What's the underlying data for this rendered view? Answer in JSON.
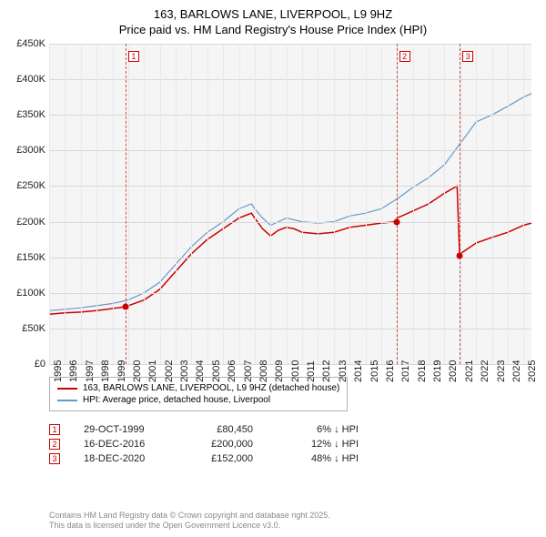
{
  "title": {
    "line1": "163, BARLOWS LANE, LIVERPOOL, L9 9HZ",
    "line2": "Price paid vs. HM Land Registry's House Price Index (HPI)"
  },
  "chart": {
    "type": "line",
    "background_color": "#f5f5f5",
    "grid_color": "#d8d8d8",
    "xlim": [
      1995,
      2025.5
    ],
    "ylim": [
      0,
      450000
    ],
    "ytick_step": 50000,
    "yticks": [
      "£0",
      "£50K",
      "£100K",
      "£150K",
      "£200K",
      "£250K",
      "£300K",
      "£350K",
      "£400K",
      "£450K"
    ],
    "xticks": [
      "1995",
      "1996",
      "1997",
      "1998",
      "1999",
      "2000",
      "2001",
      "2002",
      "2003",
      "2004",
      "2005",
      "2006",
      "2007",
      "2008",
      "2009",
      "2010",
      "2011",
      "2012",
      "2013",
      "2014",
      "2015",
      "2016",
      "2017",
      "2018",
      "2019",
      "2020",
      "2021",
      "2022",
      "2023",
      "2024",
      "2025"
    ],
    "series": [
      {
        "name": "163, BARLOWS LANE, LIVERPOOL, L9 9HZ (detached house)",
        "color": "#cc0000",
        "width": 1.5,
        "points": [
          [
            1995,
            70000
          ],
          [
            1996,
            72000
          ],
          [
            1997,
            73000
          ],
          [
            1998,
            75000
          ],
          [
            1999,
            78000
          ],
          [
            1999.83,
            80450
          ],
          [
            2000,
            82000
          ],
          [
            2001,
            90000
          ],
          [
            2002,
            105000
          ],
          [
            2003,
            130000
          ],
          [
            2004,
            155000
          ],
          [
            2005,
            175000
          ],
          [
            2006,
            190000
          ],
          [
            2007,
            205000
          ],
          [
            2007.8,
            212000
          ],
          [
            2008,
            205000
          ],
          [
            2008.5,
            190000
          ],
          [
            2009,
            180000
          ],
          [
            2009.5,
            188000
          ],
          [
            2010,
            192000
          ],
          [
            2010.5,
            190000
          ],
          [
            2011,
            185000
          ],
          [
            2012,
            183000
          ],
          [
            2013,
            185000
          ],
          [
            2014,
            192000
          ],
          [
            2015,
            195000
          ],
          [
            2016,
            198000
          ],
          [
            2016.96,
            200000
          ],
          [
            2017,
            205000
          ],
          [
            2018,
            215000
          ],
          [
            2019,
            225000
          ],
          [
            2020,
            240000
          ],
          [
            2020.8,
            250000
          ],
          [
            2020.96,
            152000
          ],
          [
            2021,
            155000
          ],
          [
            2022,
            170000
          ],
          [
            2023,
            178000
          ],
          [
            2024,
            185000
          ],
          [
            2025,
            195000
          ],
          [
            2025.5,
            198000
          ]
        ]
      },
      {
        "name": "HPI: Average price, detached house, Liverpool",
        "color": "#6699cc",
        "width": 1.2,
        "points": [
          [
            1995,
            75000
          ],
          [
            1996,
            77000
          ],
          [
            1997,
            79000
          ],
          [
            1998,
            82000
          ],
          [
            1999,
            85000
          ],
          [
            2000,
            90000
          ],
          [
            2001,
            100000
          ],
          [
            2002,
            115000
          ],
          [
            2003,
            140000
          ],
          [
            2004,
            165000
          ],
          [
            2005,
            185000
          ],
          [
            2006,
            200000
          ],
          [
            2007,
            218000
          ],
          [
            2007.8,
            225000
          ],
          [
            2008,
            218000
          ],
          [
            2008.5,
            205000
          ],
          [
            2009,
            195000
          ],
          [
            2010,
            205000
          ],
          [
            2011,
            200000
          ],
          [
            2012,
            198000
          ],
          [
            2013,
            200000
          ],
          [
            2014,
            208000
          ],
          [
            2015,
            212000
          ],
          [
            2016,
            218000
          ],
          [
            2017,
            232000
          ],
          [
            2018,
            248000
          ],
          [
            2019,
            262000
          ],
          [
            2020,
            280000
          ],
          [
            2021,
            310000
          ],
          [
            2022,
            340000
          ],
          [
            2023,
            350000
          ],
          [
            2024,
            362000
          ],
          [
            2025,
            375000
          ],
          [
            2025.5,
            380000
          ]
        ]
      }
    ],
    "markers": [
      {
        "n": "1",
        "x": 1999.83,
        "y": 80450
      },
      {
        "n": "2",
        "x": 2016.96,
        "y": 200000
      },
      {
        "n": "3",
        "x": 2020.96,
        "y": 152000
      }
    ]
  },
  "legend": [
    {
      "color": "#cc0000",
      "label": "163, BARLOWS LANE, LIVERPOOL, L9 9HZ (detached house)"
    },
    {
      "color": "#6699cc",
      "label": "HPI: Average price, detached house, Liverpool"
    }
  ],
  "transactions": [
    {
      "n": "1",
      "date": "29-OCT-1999",
      "price": "£80,450",
      "diff": "6% ↓ HPI"
    },
    {
      "n": "2",
      "date": "16-DEC-2016",
      "price": "£200,000",
      "diff": "12% ↓ HPI"
    },
    {
      "n": "3",
      "date": "18-DEC-2020",
      "price": "£152,000",
      "diff": "48% ↓ HPI"
    }
  ],
  "attribution": {
    "line1": "Contains HM Land Registry data © Crown copyright and database right 2025.",
    "line2": "This data is licensed under the Open Government Licence v3.0."
  }
}
